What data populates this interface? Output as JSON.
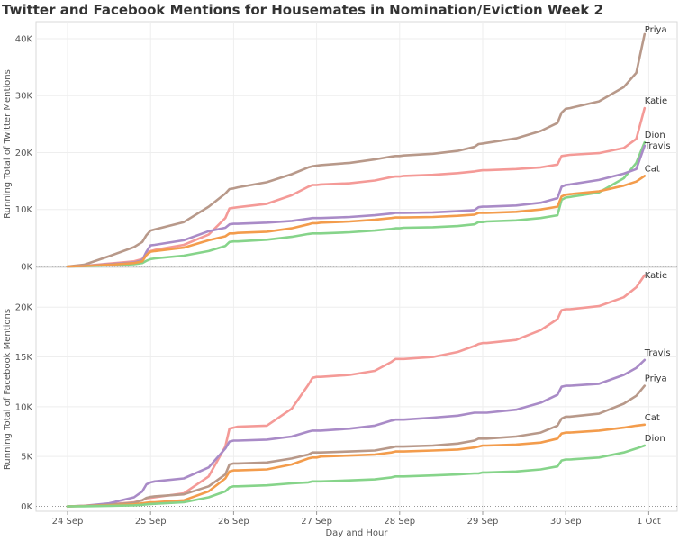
{
  "title": "Twitter and Facebook Mentions for Housemates in Nomination/Eviction Week 2",
  "chart_data": {
    "type": "line",
    "xlabel": "Day and Hour",
    "x_ticks": [
      "24 Sep",
      "25 Sep",
      "26 Sep",
      "27 Sep",
      "28 Sep",
      "29 Sep",
      "30 Sep",
      "1 Oct"
    ],
    "x": [
      0,
      0.2,
      0.5,
      0.8,
      0.9,
      0.95,
      1.0,
      1.05,
      1.4,
      1.7,
      1.9,
      1.95,
      2.0,
      2.05,
      2.4,
      2.7,
      2.9,
      2.95,
      3.0,
      3.05,
      3.4,
      3.7,
      3.9,
      3.95,
      4.0,
      4.05,
      4.4,
      4.7,
      4.9,
      4.95,
      5.0,
      5.05,
      5.4,
      5.7,
      5.9,
      5.95,
      6.0,
      6.05,
      6.4,
      6.7,
      6.85,
      6.95
    ],
    "panels": [
      {
        "name": "twitter",
        "ylabel": "Running Total of Twitter Mentions",
        "ylim": [
          0,
          43000
        ],
        "y_ticks": [
          "0K",
          "10K",
          "20K",
          "30K",
          "40K"
        ],
        "y_tick_values": [
          0,
          10000,
          20000,
          30000,
          40000
        ],
        "series": [
          {
            "name": "Priya",
            "color": "#b8998a",
            "values": [
              0,
              300,
              1800,
              3400,
              4300,
              5500,
              6300,
              6500,
              7800,
              10500,
              12800,
              13600,
              13700,
              13900,
              14800,
              16200,
              17400,
              17600,
              17700,
              17800,
              18200,
              18800,
              19300,
              19400,
              19400,
              19500,
              19800,
              20300,
              21000,
              21500,
              21600,
              21700,
              22500,
              23800,
              25200,
              27000,
              27700,
              27800,
              29000,
              31500,
              34000,
              40800
            ]
          },
          {
            "name": "Katie",
            "color": "#f49a97",
            "values": [
              0,
              100,
              500,
              900,
              1300,
              2200,
              2700,
              2900,
              3800,
              5600,
              8500,
              10200,
              10300,
              10400,
              11000,
              12500,
              14000,
              14300,
              14300,
              14400,
              14600,
              15100,
              15700,
              15800,
              15800,
              15900,
              16100,
              16400,
              16700,
              16800,
              16900,
              16900,
              17100,
              17400,
              17900,
              19400,
              19500,
              19600,
              19900,
              20800,
              22400,
              27800
            ]
          },
          {
            "name": "Dion",
            "color": "#86d48a",
            "values": [
              0,
              50,
              200,
              400,
              600,
              1000,
              1300,
              1400,
              1900,
              2700,
              3600,
              4300,
              4400,
              4400,
              4700,
              5200,
              5700,
              5800,
              5800,
              5800,
              6000,
              6300,
              6600,
              6700,
              6700,
              6800,
              6900,
              7100,
              7400,
              7800,
              7800,
              7900,
              8100,
              8500,
              9000,
              11700,
              12100,
              12200,
              13000,
              15500,
              18200,
              21800
            ]
          },
          {
            "name": "Travis",
            "color": "#a98bc7",
            "values": [
              0,
              100,
              400,
              700,
              1100,
              2600,
              3700,
              3800,
              4600,
              6200,
              6800,
              7400,
              7500,
              7500,
              7700,
              8000,
              8400,
              8500,
              8500,
              8500,
              8700,
              9000,
              9300,
              9400,
              9400,
              9400,
              9500,
              9700,
              9900,
              10400,
              10500,
              10500,
              10700,
              11200,
              12000,
              14000,
              14300,
              14400,
              15200,
              16300,
              17100,
              21200
            ]
          },
          {
            "name": "Cat",
            "color": "#f39c4c",
            "values": [
              0,
              80,
              300,
              600,
              900,
              2000,
              2600,
              2700,
              3300,
              4600,
              5300,
              5800,
              5800,
              5900,
              6100,
              6700,
              7400,
              7600,
              7600,
              7700,
              7900,
              8200,
              8500,
              8600,
              8600,
              8600,
              8700,
              8900,
              9100,
              9400,
              9400,
              9400,
              9600,
              10000,
              10500,
              12300,
              12600,
              12700,
              13200,
              14200,
              14900,
              15900
            ]
          }
        ]
      },
      {
        "name": "facebook",
        "ylabel": "Running Total of Facebook Mentions",
        "ylim": [
          -500,
          24000
        ],
        "y_ticks": [
          "0K",
          "5K",
          "10K",
          "15K",
          "20K"
        ],
        "y_tick_values": [
          0,
          5000,
          10000,
          15000,
          20000
        ],
        "series": [
          {
            "name": "Katie",
            "color": "#f49a97",
            "values": [
              0,
              50,
              200,
              400,
              600,
              800,
              850,
              900,
              1300,
              3000,
              6000,
              7800,
              7900,
              8000,
              8100,
              9800,
              12200,
              12900,
              13000,
              13000,
              13200,
              13600,
              14500,
              14800,
              14800,
              14800,
              15000,
              15500,
              16100,
              16300,
              16400,
              16400,
              16700,
              17700,
              18800,
              19700,
              19800,
              19800,
              20100,
              21000,
              22000,
              23200
            ]
          },
          {
            "name": "Travis",
            "color": "#a98bc7",
            "values": [
              0,
              50,
              300,
              900,
              1500,
              2200,
              2400,
              2500,
              2800,
              3900,
              5800,
              6500,
              6600,
              6600,
              6700,
              7000,
              7500,
              7600,
              7600,
              7600,
              7800,
              8100,
              8600,
              8700,
              8700,
              8700,
              8900,
              9100,
              9400,
              9400,
              9400,
              9400,
              9700,
              10400,
              11200,
              12000,
              12100,
              12100,
              12300,
              13200,
              13900,
              14700
            ]
          },
          {
            "name": "Priya",
            "color": "#b8998a",
            "values": [
              0,
              30,
              150,
              350,
              600,
              850,
              950,
              1000,
              1200,
              2000,
              3200,
              4200,
              4300,
              4300,
              4400,
              4800,
              5200,
              5400,
              5400,
              5400,
              5500,
              5600,
              5900,
              6000,
              6000,
              6000,
              6100,
              6300,
              6600,
              6800,
              6800,
              6800,
              7000,
              7400,
              8100,
              8800,
              9000,
              9000,
              9300,
              10300,
              11100,
              12100
            ]
          },
          {
            "name": "Cat",
            "color": "#f39c4c",
            "values": [
              0,
              20,
              100,
              200,
              300,
              350,
              400,
              400,
              600,
              1500,
              2800,
              3500,
              3600,
              3600,
              3700,
              4200,
              4800,
              4900,
              4900,
              5000,
              5100,
              5200,
              5400,
              5500,
              5500,
              5500,
              5600,
              5700,
              5900,
              6000,
              6100,
              6100,
              6200,
              6400,
              6800,
              7300,
              7400,
              7400,
              7600,
              7900,
              8100,
              8200
            ]
          },
          {
            "name": "Dion",
            "color": "#86d48a",
            "values": [
              0,
              10,
              50,
              100,
              150,
              200,
              230,
              250,
              400,
              900,
              1500,
              1900,
              2000,
              2000,
              2100,
              2300,
              2400,
              2500,
              2500,
              2500,
              2600,
              2700,
              2900,
              3000,
              3000,
              3000,
              3100,
              3200,
              3300,
              3300,
              3400,
              3400,
              3500,
              3700,
              4000,
              4600,
              4700,
              4700,
              4900,
              5400,
              5800,
              6100
            ]
          }
        ]
      }
    ]
  }
}
